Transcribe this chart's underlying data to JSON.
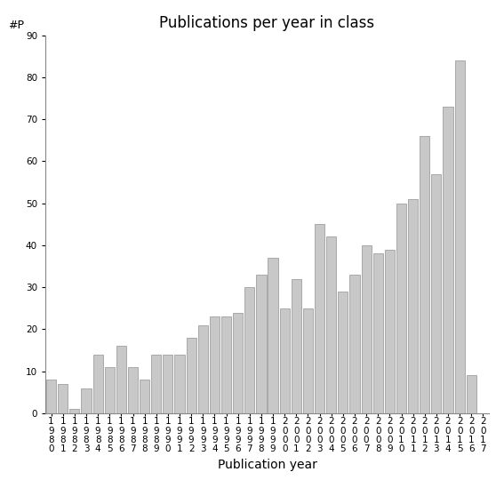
{
  "years": [
    "1980",
    "1981",
    "1982",
    "1983",
    "1984",
    "1985",
    "1986",
    "1987",
    "1988",
    "1989",
    "1990",
    "1991",
    "1992",
    "1993",
    "1994",
    "1995",
    "1996",
    "1997",
    "1998",
    "1999",
    "2000",
    "2001",
    "2002",
    "2003",
    "2004",
    "2005",
    "2006",
    "2007",
    "2008",
    "2009",
    "2010",
    "2011",
    "2012",
    "2013",
    "2014",
    "2015",
    "2016",
    "2017"
  ],
  "values": [
    8,
    7,
    1,
    6,
    14,
    11,
    16,
    11,
    8,
    14,
    14,
    14,
    18,
    21,
    23,
    23,
    24,
    30,
    33,
    37,
    25,
    32,
    25,
    45,
    42,
    29,
    33,
    40,
    38,
    39,
    50,
    51,
    66,
    57,
    73,
    84,
    9,
    0
  ],
  "title": "Publications per year in class",
  "xlabel": "Publication year",
  "yp_label": "#P",
  "bar_color": "#c8c8c8",
  "bar_edgecolor": "#a0a0a0",
  "ylim": [
    0,
    90
  ],
  "yticks": [
    0,
    10,
    20,
    30,
    40,
    50,
    60,
    70,
    80,
    90
  ],
  "background_color": "#ffffff",
  "title_fontsize": 12,
  "xlabel_fontsize": 10,
  "tick_fontsize": 7.5,
  "yp_fontsize": 9
}
